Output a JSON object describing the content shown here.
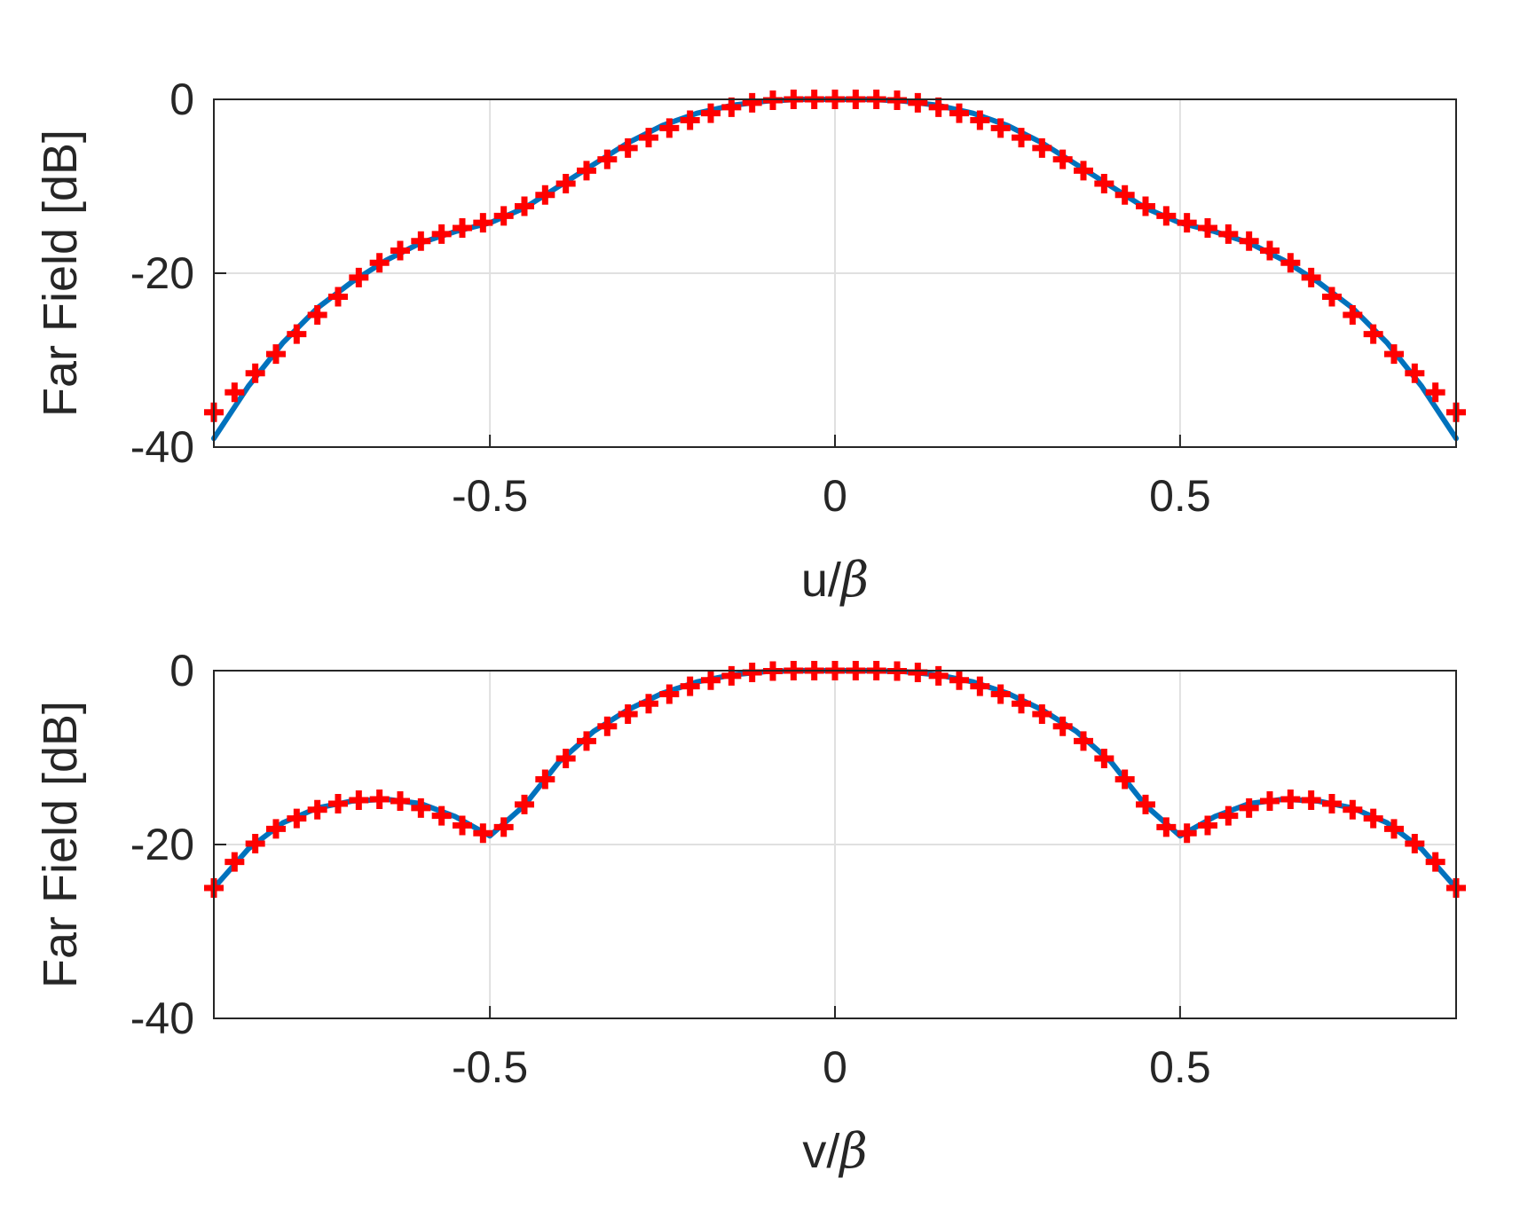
{
  "colors": {
    "line": "#0072BD",
    "marker": "#FF0000"
  },
  "chart_data": [
    {
      "type": "line",
      "title": "",
      "xlabel_main": "u/",
      "xlabel_greek": "β",
      "ylabel": "Far Field [dB]",
      "xlim": [
        -0.9,
        0.9
      ],
      "ylim": [
        -40,
        0
      ],
      "grid": true,
      "xticks": [
        -0.5,
        0,
        0.5
      ],
      "xtick_labels": [
        "-0.5",
        "0",
        "0.5"
      ],
      "yticks": [
        -40,
        -20,
        0
      ],
      "ytick_labels": [
        "-40",
        "-20",
        "0"
      ],
      "series": [
        {
          "style": "solid-line",
          "x": [
            -0.9,
            -0.85,
            -0.8,
            -0.75,
            -0.7,
            -0.65,
            -0.6,
            -0.55,
            -0.5,
            -0.45,
            -0.4,
            -0.35,
            -0.3,
            -0.25,
            -0.2,
            -0.15,
            -0.1,
            -0.05,
            0,
            0.05,
            0.1,
            0.15,
            0.2,
            0.25,
            0.3,
            0.35,
            0.4,
            0.45,
            0.5,
            0.55,
            0.6,
            0.65,
            0.7,
            0.75,
            0.8,
            0.85,
            0.9
          ],
          "y": [
            -39,
            -33,
            -28,
            -24,
            -21,
            -18.5,
            -16.5,
            -15.2,
            -14.2,
            -12.5,
            -10,
            -7.5,
            -5,
            -3,
            -1.6,
            -0.7,
            -0.2,
            0,
            0,
            0,
            -0.2,
            -0.7,
            -1.6,
            -3,
            -5,
            -7.5,
            -10,
            -12.5,
            -14.2,
            -15.2,
            -16.5,
            -18.5,
            -21,
            -24,
            -28,
            -33,
            -39
          ]
        },
        {
          "style": "plus-markers",
          "x": [
            -0.9,
            -0.87,
            -0.84,
            -0.81,
            -0.78,
            -0.75,
            -0.72,
            -0.69,
            -0.66,
            -0.63,
            -0.6,
            -0.57,
            -0.54,
            -0.51,
            -0.48,
            -0.45,
            -0.42,
            -0.39,
            -0.36,
            -0.33,
            -0.3,
            -0.27,
            -0.24,
            -0.21,
            -0.18,
            -0.15,
            -0.12,
            -0.09,
            -0.06,
            -0.03,
            0,
            0.03,
            0.06,
            0.09,
            0.12,
            0.15,
            0.18,
            0.21,
            0.24,
            0.27,
            0.3,
            0.33,
            0.36,
            0.39,
            0.42,
            0.45,
            0.48,
            0.51,
            0.54,
            0.57,
            0.6,
            0.63,
            0.66,
            0.69,
            0.72,
            0.75,
            0.78,
            0.81,
            0.84,
            0.87,
            0.9
          ],
          "y": [
            -36,
            -33.7,
            -31.5,
            -29.3,
            -27,
            -24.8,
            -22.7,
            -20.5,
            -18.8,
            -17.4,
            -16.3,
            -15.5,
            -14.8,
            -14.2,
            -13.4,
            -12.3,
            -11,
            -9.7,
            -8.2,
            -6.9,
            -5.6,
            -4.4,
            -3.3,
            -2.4,
            -1.6,
            -0.9,
            -0.4,
            -0.1,
            0,
            0,
            0,
            0,
            0,
            -0.1,
            -0.4,
            -0.9,
            -1.6,
            -2.4,
            -3.3,
            -4.4,
            -5.6,
            -6.9,
            -8.2,
            -9.7,
            -11,
            -12.3,
            -13.4,
            -14.2,
            -14.8,
            -15.5,
            -16.3,
            -17.4,
            -18.8,
            -20.5,
            -22.7,
            -24.8,
            -27,
            -29.3,
            -31.5,
            -33.7,
            -36
          ]
        }
      ]
    },
    {
      "type": "line",
      "title": "",
      "xlabel_main": "v/",
      "xlabel_greek": "β",
      "ylabel": "Far Field [dB]",
      "xlim": [
        -0.9,
        0.9
      ],
      "ylim": [
        -40,
        0
      ],
      "grid": true,
      "xticks": [
        -0.5,
        0,
        0.5
      ],
      "xtick_labels": [
        "-0.5",
        "0",
        "0.5"
      ],
      "yticks": [
        -40,
        -20,
        0
      ],
      "ytick_labels": [
        "-40",
        "-20",
        "0"
      ],
      "series": [
        {
          "style": "solid-line",
          "x": [
            -0.9,
            -0.85,
            -0.8,
            -0.75,
            -0.7,
            -0.65,
            -0.6,
            -0.55,
            -0.5,
            -0.45,
            -0.4,
            -0.35,
            -0.3,
            -0.25,
            -0.2,
            -0.15,
            -0.1,
            -0.05,
            0,
            0.05,
            0.1,
            0.15,
            0.2,
            0.25,
            0.3,
            0.35,
            0.4,
            0.45,
            0.5,
            0.55,
            0.6,
            0.65,
            0.7,
            0.75,
            0.8,
            0.85,
            0.9
          ],
          "y": [
            -25,
            -20.5,
            -17.5,
            -15.8,
            -15,
            -14.8,
            -15.3,
            -16.8,
            -19,
            -15.5,
            -10.5,
            -7,
            -4.5,
            -2.6,
            -1.3,
            -0.5,
            -0.1,
            0,
            0,
            0,
            -0.1,
            -0.5,
            -1.3,
            -2.6,
            -4.5,
            -7,
            -10.5,
            -15.5,
            -19,
            -16.8,
            -15.3,
            -14.8,
            -15,
            -15.8,
            -17.5,
            -20.5,
            -25
          ]
        },
        {
          "style": "plus-markers",
          "x": [
            -0.9,
            -0.87,
            -0.84,
            -0.81,
            -0.78,
            -0.75,
            -0.72,
            -0.69,
            -0.66,
            -0.63,
            -0.6,
            -0.57,
            -0.54,
            -0.51,
            -0.48,
            -0.45,
            -0.42,
            -0.39,
            -0.36,
            -0.33,
            -0.3,
            -0.27,
            -0.24,
            -0.21,
            -0.18,
            -0.15,
            -0.12,
            -0.09,
            -0.06,
            -0.03,
            0,
            0.03,
            0.06,
            0.09,
            0.12,
            0.15,
            0.18,
            0.21,
            0.24,
            0.27,
            0.3,
            0.33,
            0.36,
            0.39,
            0.42,
            0.45,
            0.48,
            0.51,
            0.54,
            0.57,
            0.6,
            0.63,
            0.66,
            0.69,
            0.72,
            0.75,
            0.78,
            0.81,
            0.84,
            0.87,
            0.9
          ],
          "y": [
            -25,
            -22,
            -19.9,
            -18.2,
            -17,
            -16,
            -15.3,
            -14.9,
            -14.8,
            -15,
            -15.8,
            -16.7,
            -17.8,
            -18.7,
            -18,
            -15.4,
            -12.5,
            -10.1,
            -8.1,
            -6.4,
            -5,
            -3.8,
            -2.7,
            -1.8,
            -1.1,
            -0.6,
            -0.2,
            -0.05,
            0,
            0,
            0,
            0,
            0,
            -0.05,
            -0.2,
            -0.6,
            -1.1,
            -1.8,
            -2.7,
            -3.8,
            -5,
            -6.4,
            -8.1,
            -10.1,
            -12.5,
            -15.4,
            -18,
            -18.7,
            -17.8,
            -16.7,
            -15.8,
            -15,
            -14.8,
            -14.9,
            -15.3,
            -16,
            -17,
            -18.2,
            -19.9,
            -22,
            -25
          ]
        }
      ]
    }
  ]
}
